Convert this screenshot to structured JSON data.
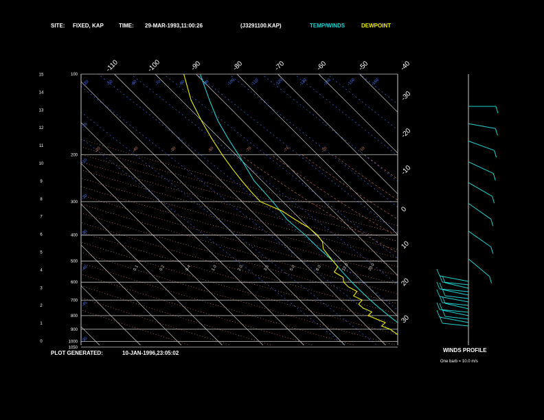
{
  "header": {
    "site_label": "SITE:",
    "site_value": "FIXED, KAP",
    "time_label": "TIME:",
    "time_value": "29-MAR-1993,11:00:26",
    "file_id": "(J3291100.KAP)",
    "legend_temp": "TEMP/WINDS",
    "legend_dew": "DEWPOINT"
  },
  "footer": {
    "generated_label": "PLOT GENERATED:",
    "generated_value": "10-JAN-1996,23:05:02"
  },
  "winds_panel": {
    "title": "WINDS PROFILE",
    "note": "One barb = 10.0 m/s"
  },
  "colors": {
    "temp": "#22d3d3",
    "dewpoint": "#f0f000",
    "isobar": "#cccccc",
    "isotherm": "#ffffff",
    "dry_adiabat": "#d07a5a",
    "moist_adiabat": "#b86050",
    "mixing_ratio": "#4477ff",
    "wind": "#22d3d3"
  },
  "chart_data": {
    "type": "line",
    "series": [
      {
        "name": "TEMP/WINDS",
        "points": [
          [
            1000,
            -43
          ],
          [
            975,
            -44
          ],
          [
            950,
            -45
          ],
          [
            925,
            -46
          ],
          [
            900,
            -47
          ],
          [
            850,
            -48
          ],
          [
            800,
            -50
          ],
          [
            750,
            -52
          ],
          [
            700,
            -54
          ],
          [
            650,
            -56
          ],
          [
            600,
            -58
          ],
          [
            550,
            -60
          ],
          [
            500,
            -62
          ],
          [
            450,
            -65
          ],
          [
            400,
            -68
          ],
          [
            350,
            -72
          ],
          [
            300,
            -75
          ],
          [
            250,
            -79
          ],
          [
            200,
            -82
          ],
          [
            175,
            -84
          ],
          [
            150,
            -86
          ],
          [
            125,
            -87.5
          ],
          [
            100,
            -89
          ]
        ]
      },
      {
        "name": "DEWPOINT",
        "points": [
          [
            1000,
            -45
          ],
          [
            975,
            -46
          ],
          [
            950,
            -48
          ],
          [
            925,
            -49
          ],
          [
            900,
            -50
          ],
          [
            875,
            -52
          ],
          [
            850,
            -51
          ],
          [
            825,
            -53
          ],
          [
            800,
            -55
          ],
          [
            775,
            -54
          ],
          [
            750,
            -56
          ],
          [
            725,
            -57
          ],
          [
            700,
            -56
          ],
          [
            675,
            -58
          ],
          [
            650,
            -57
          ],
          [
            625,
            -59
          ],
          [
            600,
            -60
          ],
          [
            575,
            -60
          ],
          [
            550,
            -62
          ],
          [
            525,
            -61
          ],
          [
            500,
            -62
          ],
          [
            475,
            -63
          ],
          [
            450,
            -64
          ],
          [
            425,
            -64
          ],
          [
            400,
            -65
          ],
          [
            375,
            -67
          ],
          [
            350,
            -70
          ],
          [
            325,
            -73
          ],
          [
            300,
            -78
          ],
          [
            275,
            -80
          ],
          [
            250,
            -82
          ],
          [
            225,
            -84
          ],
          [
            200,
            -86
          ],
          [
            175,
            -88
          ],
          [
            150,
            -90
          ],
          [
            125,
            -92
          ],
          [
            100,
            -93
          ]
        ]
      }
    ],
    "pressure_ticks": [
      100,
      200,
      300,
      400,
      500,
      600,
      700,
      800,
      900,
      1000,
      1050
    ],
    "altitude_ticks": [
      "0",
      "1",
      "2",
      "3",
      "4",
      "5",
      "6",
      "7",
      "8",
      "9",
      "10",
      "11",
      "12",
      "13",
      "14",
      "15"
    ],
    "isotherm_labels_top": [
      "-110",
      "-100",
      "-90",
      "-80",
      "-70",
      "-60",
      "-50",
      "-40"
    ],
    "isotherm_labels_right": [
      "-30",
      "-20",
      "-10",
      "0",
      "10",
      "20",
      "30"
    ],
    "dry_adiabat_labels": [
      "-20",
      "-40",
      "-30",
      "-50",
      "-70",
      "-74",
      "-20",
      "-10"
    ],
    "moist_adiabat_labels": [
      "0.1",
      "0.2",
      "0.4",
      "1.0",
      "2.0",
      "3.5",
      "5.0",
      "8.0",
      "12.0",
      "20.0"
    ],
    "mixing_ratio_labels_top": [
      "-20",
      "-50",
      "-60",
      "-70",
      "-80",
      "-90",
      "-100",
      "-110",
      "-120",
      "-130",
      "-140",
      "-150",
      "-160"
    ],
    "mixing_ratio_labels_left": [
      "-70",
      "-10",
      "-20",
      "-30",
      "-40",
      "-45",
      "-35"
    ],
    "winds_barbs": [
      {
        "p": 150,
        "dir": 270,
        "spd": 40
      },
      {
        "p": 175,
        "dir": 280,
        "spd": 45
      },
      {
        "p": 200,
        "dir": 290,
        "spd": 50
      },
      {
        "p": 230,
        "dir": 295,
        "spd": 45
      },
      {
        "p": 260,
        "dir": 300,
        "spd": 45
      },
      {
        "p": 290,
        "dir": 305,
        "spd": 40
      },
      {
        "p": 330,
        "dir": 305,
        "spd": 30
      },
      {
        "p": 370,
        "dir": 310,
        "spd": 20
      }
    ]
  }
}
